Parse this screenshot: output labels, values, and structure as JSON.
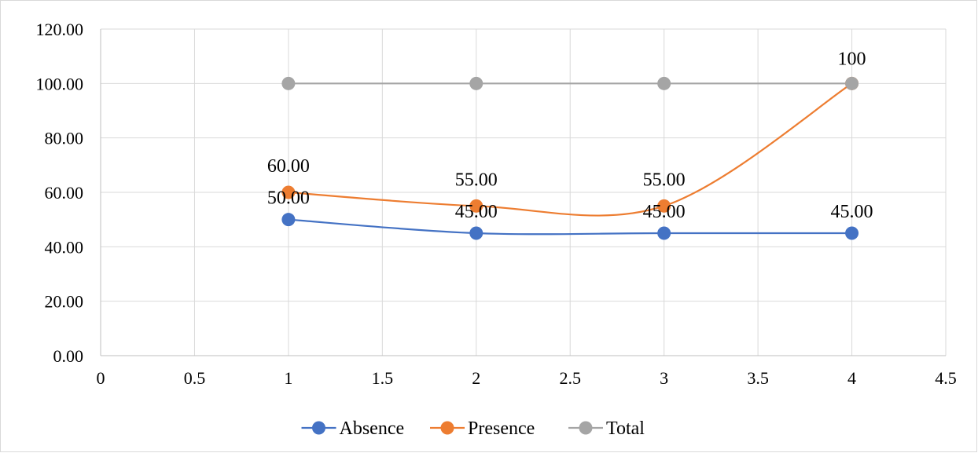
{
  "chart_data": {
    "type": "scatter",
    "title": "",
    "xlabel": "",
    "ylabel": "",
    "xlim": [
      0,
      4.5
    ],
    "ylim": [
      0,
      120
    ],
    "x_ticks": [
      "0",
      "0.5",
      "1",
      "1.5",
      "2",
      "2.5",
      "3",
      "3.5",
      "4",
      "4.5"
    ],
    "y_ticks": [
      "0.00",
      "20.00",
      "40.00",
      "60.00",
      "80.00",
      "100.00",
      "120.00"
    ],
    "grid": true,
    "legend_position": "bottom",
    "smoothed_lines": true,
    "series": [
      {
        "name": "Absence",
        "color": "#4472c4",
        "x": [
          1,
          2,
          3,
          4
        ],
        "values": [
          50,
          45,
          45,
          45
        ],
        "data_labels": [
          "50.00",
          "45.00",
          "45.00",
          "45.00"
        ]
      },
      {
        "name": "Presence",
        "color": "#ed7d31",
        "x": [
          1,
          2,
          3,
          4
        ],
        "values": [
          60,
          55,
          55,
          100
        ],
        "data_labels": [
          "60.00",
          "55.00",
          "55.00",
          ""
        ]
      },
      {
        "name": "Total",
        "color": "#a5a5a5",
        "x": [
          1,
          2,
          3,
          4
        ],
        "values": [
          100,
          100,
          100,
          100
        ],
        "data_labels": [
          "",
          "",
          "",
          "100"
        ]
      }
    ]
  }
}
